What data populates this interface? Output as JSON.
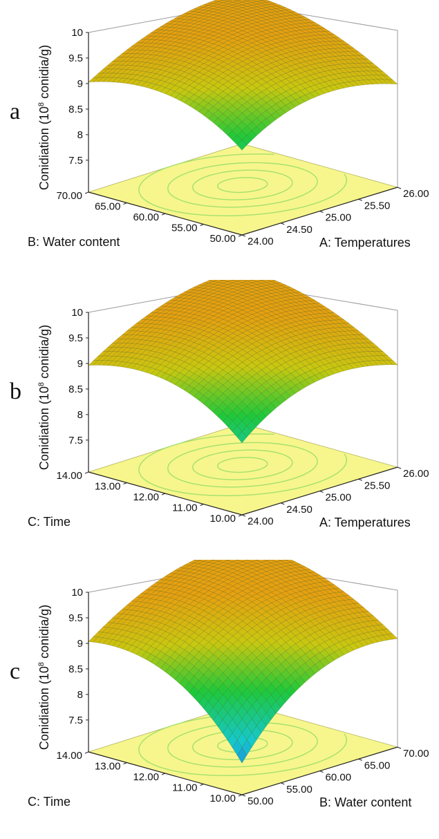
{
  "figure": {
    "panels": [
      "a",
      "b",
      "c"
    ]
  },
  "chart_data": [
    {
      "type": "surface3d",
      "panel_label": "a",
      "zlabel": "Conidiation (10⁸ conidia/g)",
      "zlabel_main": "Conidiation (10",
      "zlabel_sup": "8",
      "zlabel_tail": " conidia/g)",
      "zlim": [
        7.5,
        10
      ],
      "zticks": [
        "7.5",
        "8",
        "8.5",
        "9",
        "9.5",
        "10"
      ],
      "x_factor": {
        "label": "A:  Temperatures",
        "range": [
          24,
          26
        ],
        "ticks": [
          "24.00",
          "24.50",
          "25.00",
          "25.50",
          "26.00"
        ]
      },
      "y_factor": {
        "label": "B: Water content",
        "range": [
          50,
          70
        ],
        "ticks": [
          "50.00",
          "55.00",
          "60.00",
          "65.00",
          "70.00"
        ]
      },
      "surface": {
        "peak": 9.45,
        "corner_front": 7.7,
        "corner_left": 8.6,
        "corner_right": 8.5,
        "corner_back": 8.9
      },
      "colormap": [
        "#1e40d8",
        "#16c8d0",
        "#1ec83a",
        "#c8c810",
        "#e6a010"
      ],
      "floor_color": "#f6f68c",
      "contour_color": "#a4e06c"
    },
    {
      "type": "surface3d",
      "panel_label": "b",
      "zlabel": "Conidiation (10⁸ conidia/g)",
      "zlabel_main": "Conidiation (10",
      "zlabel_sup": "8",
      "zlabel_tail": " conidia/g)",
      "zlim": [
        7.5,
        10
      ],
      "zticks": [
        "7.5",
        "8",
        "8.5",
        "9",
        "9.5",
        "10"
      ],
      "x_factor": {
        "label": "A:  Temperatures",
        "range": [
          24,
          26
        ],
        "ticks": [
          "24.00",
          "24.50",
          "25.00",
          "25.50",
          "26.00"
        ]
      },
      "y_factor": {
        "label": "C: Time",
        "range": [
          10,
          14
        ],
        "ticks": [
          "10.00",
          "11.00",
          "12.00",
          "13.00",
          "14.00"
        ]
      },
      "surface": {
        "peak": 9.45,
        "corner_front": 7.5,
        "corner_left": 8.5,
        "corner_right": 8.45,
        "corner_back": 8.9
      },
      "colormap": [
        "#1e40d8",
        "#16c8d0",
        "#1ec83a",
        "#c8c810",
        "#e6a010"
      ],
      "floor_color": "#f6f68c",
      "contour_color": "#a4e06c"
    },
    {
      "type": "surface3d",
      "panel_label": "c",
      "zlabel": "Conidiation (10⁸ conidia/g)",
      "zlabel_main": "Conidiation (10",
      "zlabel_sup": "8",
      "zlabel_tail": " conidia/g)",
      "zlim": [
        7.5,
        10
      ],
      "zticks": [
        "7.5",
        "8",
        "8.5",
        "9",
        "9.5",
        "10"
      ],
      "x_factor": {
        "label": "B: Water content",
        "range": [
          50,
          70
        ],
        "ticks": [
          "50.00",
          "55.00",
          "60.00",
          "65.00",
          "70.00"
        ]
      },
      "y_factor": {
        "label": "C: Time",
        "range": [
          10,
          14
        ],
        "ticks": [
          "10.00",
          "11.00",
          "12.00",
          "13.00",
          "14.00"
        ]
      },
      "surface": {
        "peak": 9.5,
        "corner_front": 6.9,
        "corner_left": 8.5,
        "corner_right": 8.5,
        "corner_back": 8.9
      },
      "colormap": [
        "#1e40d8",
        "#16c8d0",
        "#1ec83a",
        "#c8c810",
        "#e6a010"
      ],
      "floor_color": "#f6f68c",
      "contour_color": "#a4e06c"
    }
  ]
}
